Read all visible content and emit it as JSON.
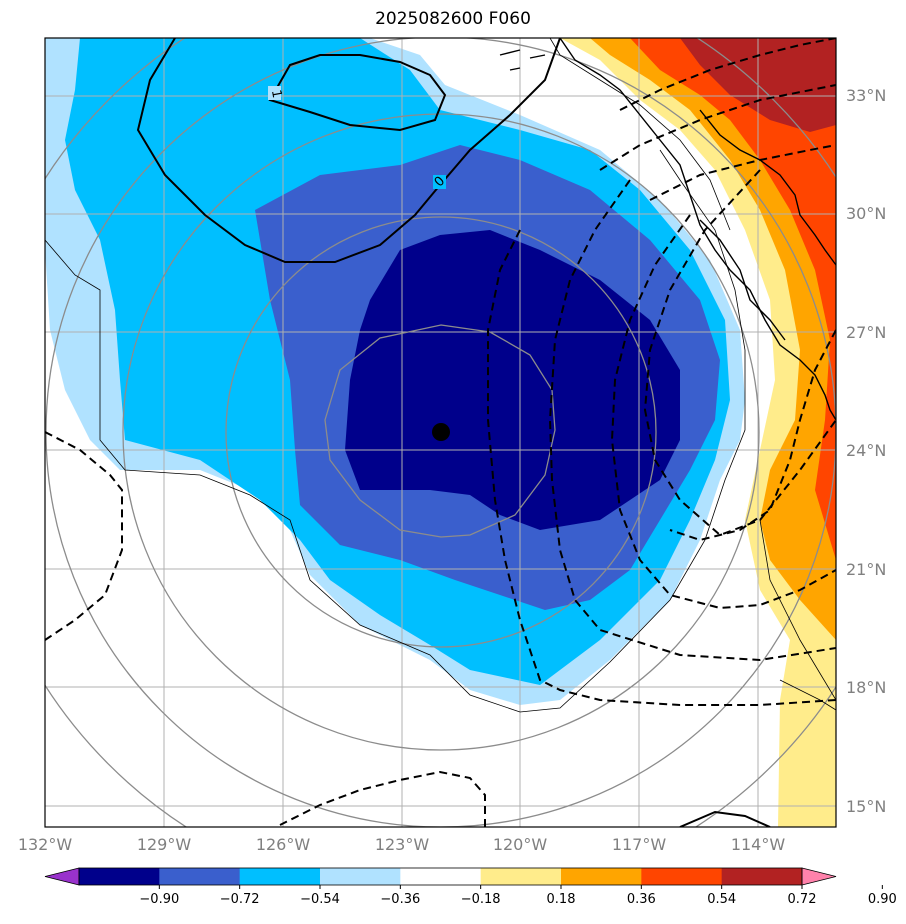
{
  "title": "2025082600 F060",
  "map": {
    "lon_range": [
      -132,
      -112
    ],
    "lat_range": [
      14.5,
      34.5
    ],
    "lat_ticks": [
      "33°N",
      "30°N",
      "27°N",
      "24°N",
      "21°N",
      "18°N",
      "15°N"
    ],
    "lon_ticks": [
      "132°W",
      "129°W",
      "126°W",
      "123°W",
      "120°W",
      "117°W",
      "114°W"
    ],
    "center_marker": {
      "lon": -122.0,
      "lat": 24.5
    },
    "contour_labels": [
      "1",
      "0"
    ]
  },
  "colorbar": {
    "labels": [
      "−0.90",
      "−0.72",
      "−0.54",
      "−0.36",
      "−0.18",
      "0.18",
      "0.36",
      "0.54",
      "0.72",
      "0.90"
    ],
    "colors": [
      "#9932cc",
      "#00008b",
      "#3a5fcd",
      "#00bfff",
      "#b0e2ff",
      "#ffffff",
      "#ffec8b",
      "#ffa500",
      "#ff4500",
      "#b22222",
      "#ff82ab"
    ]
  }
}
